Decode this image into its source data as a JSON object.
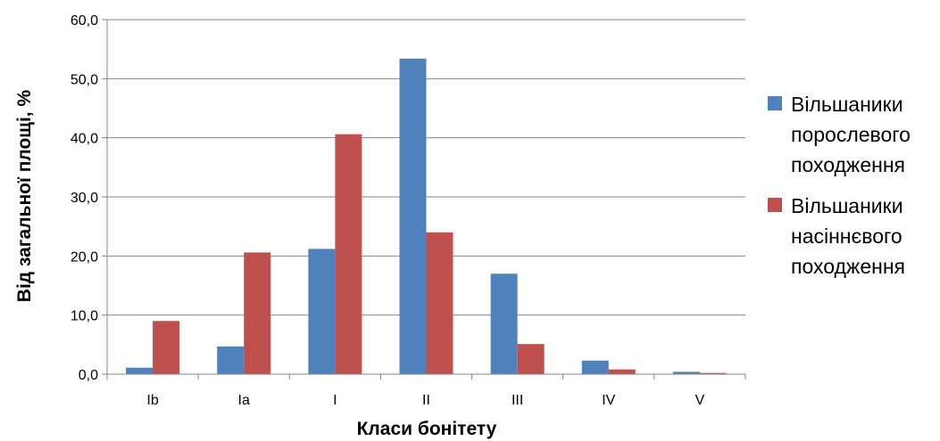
{
  "chart_data": {
    "type": "bar",
    "title": "",
    "xlabel": "Класи бонітету",
    "ylabel": "Від загальної площі, %",
    "categories": [
      "Ib",
      "Ia",
      "I",
      "II",
      "III",
      "IV",
      "V"
    ],
    "ylim": [
      0,
      60
    ],
    "yticks": [
      "0,0",
      "10,0",
      "20,0",
      "30,0",
      "40,0",
      "50,0",
      "60,0"
    ],
    "grid": true,
    "legend_position": "right",
    "series": [
      {
        "name": "Вільшаники порослевого походження",
        "color": "#4F81BD",
        "values": [
          1.1,
          4.7,
          21.2,
          53.4,
          17.0,
          2.3,
          0.4
        ]
      },
      {
        "name": "Вільшаники насіннєвого походження",
        "color": "#C0504D",
        "values": [
          9.0,
          20.6,
          40.6,
          24.0,
          5.1,
          0.8,
          0.2
        ]
      }
    ],
    "legend_lines": [
      [
        "Вільшаники",
        "порослевого",
        "походження"
      ],
      [
        "Вільшаники",
        "насіннєвого",
        "походження"
      ]
    ]
  }
}
